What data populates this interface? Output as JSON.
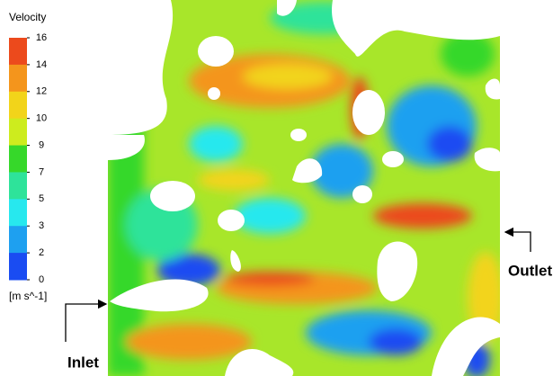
{
  "legend": {
    "title": "Velocity",
    "unit": "[m s^-1]",
    "ticks": [
      16,
      14,
      12,
      10,
      9,
      7,
      5,
      3,
      2,
      0
    ],
    "colors": [
      "#ec4a1c",
      "#f4951c",
      "#f2d41a",
      "#cdec1e",
      "#36d82a",
      "#2ee39a",
      "#27e8ee",
      "#1ea0f0",
      "#1a4cf2"
    ]
  },
  "labels": {
    "inlet": "Inlet",
    "outlet": "Outlet"
  }
}
